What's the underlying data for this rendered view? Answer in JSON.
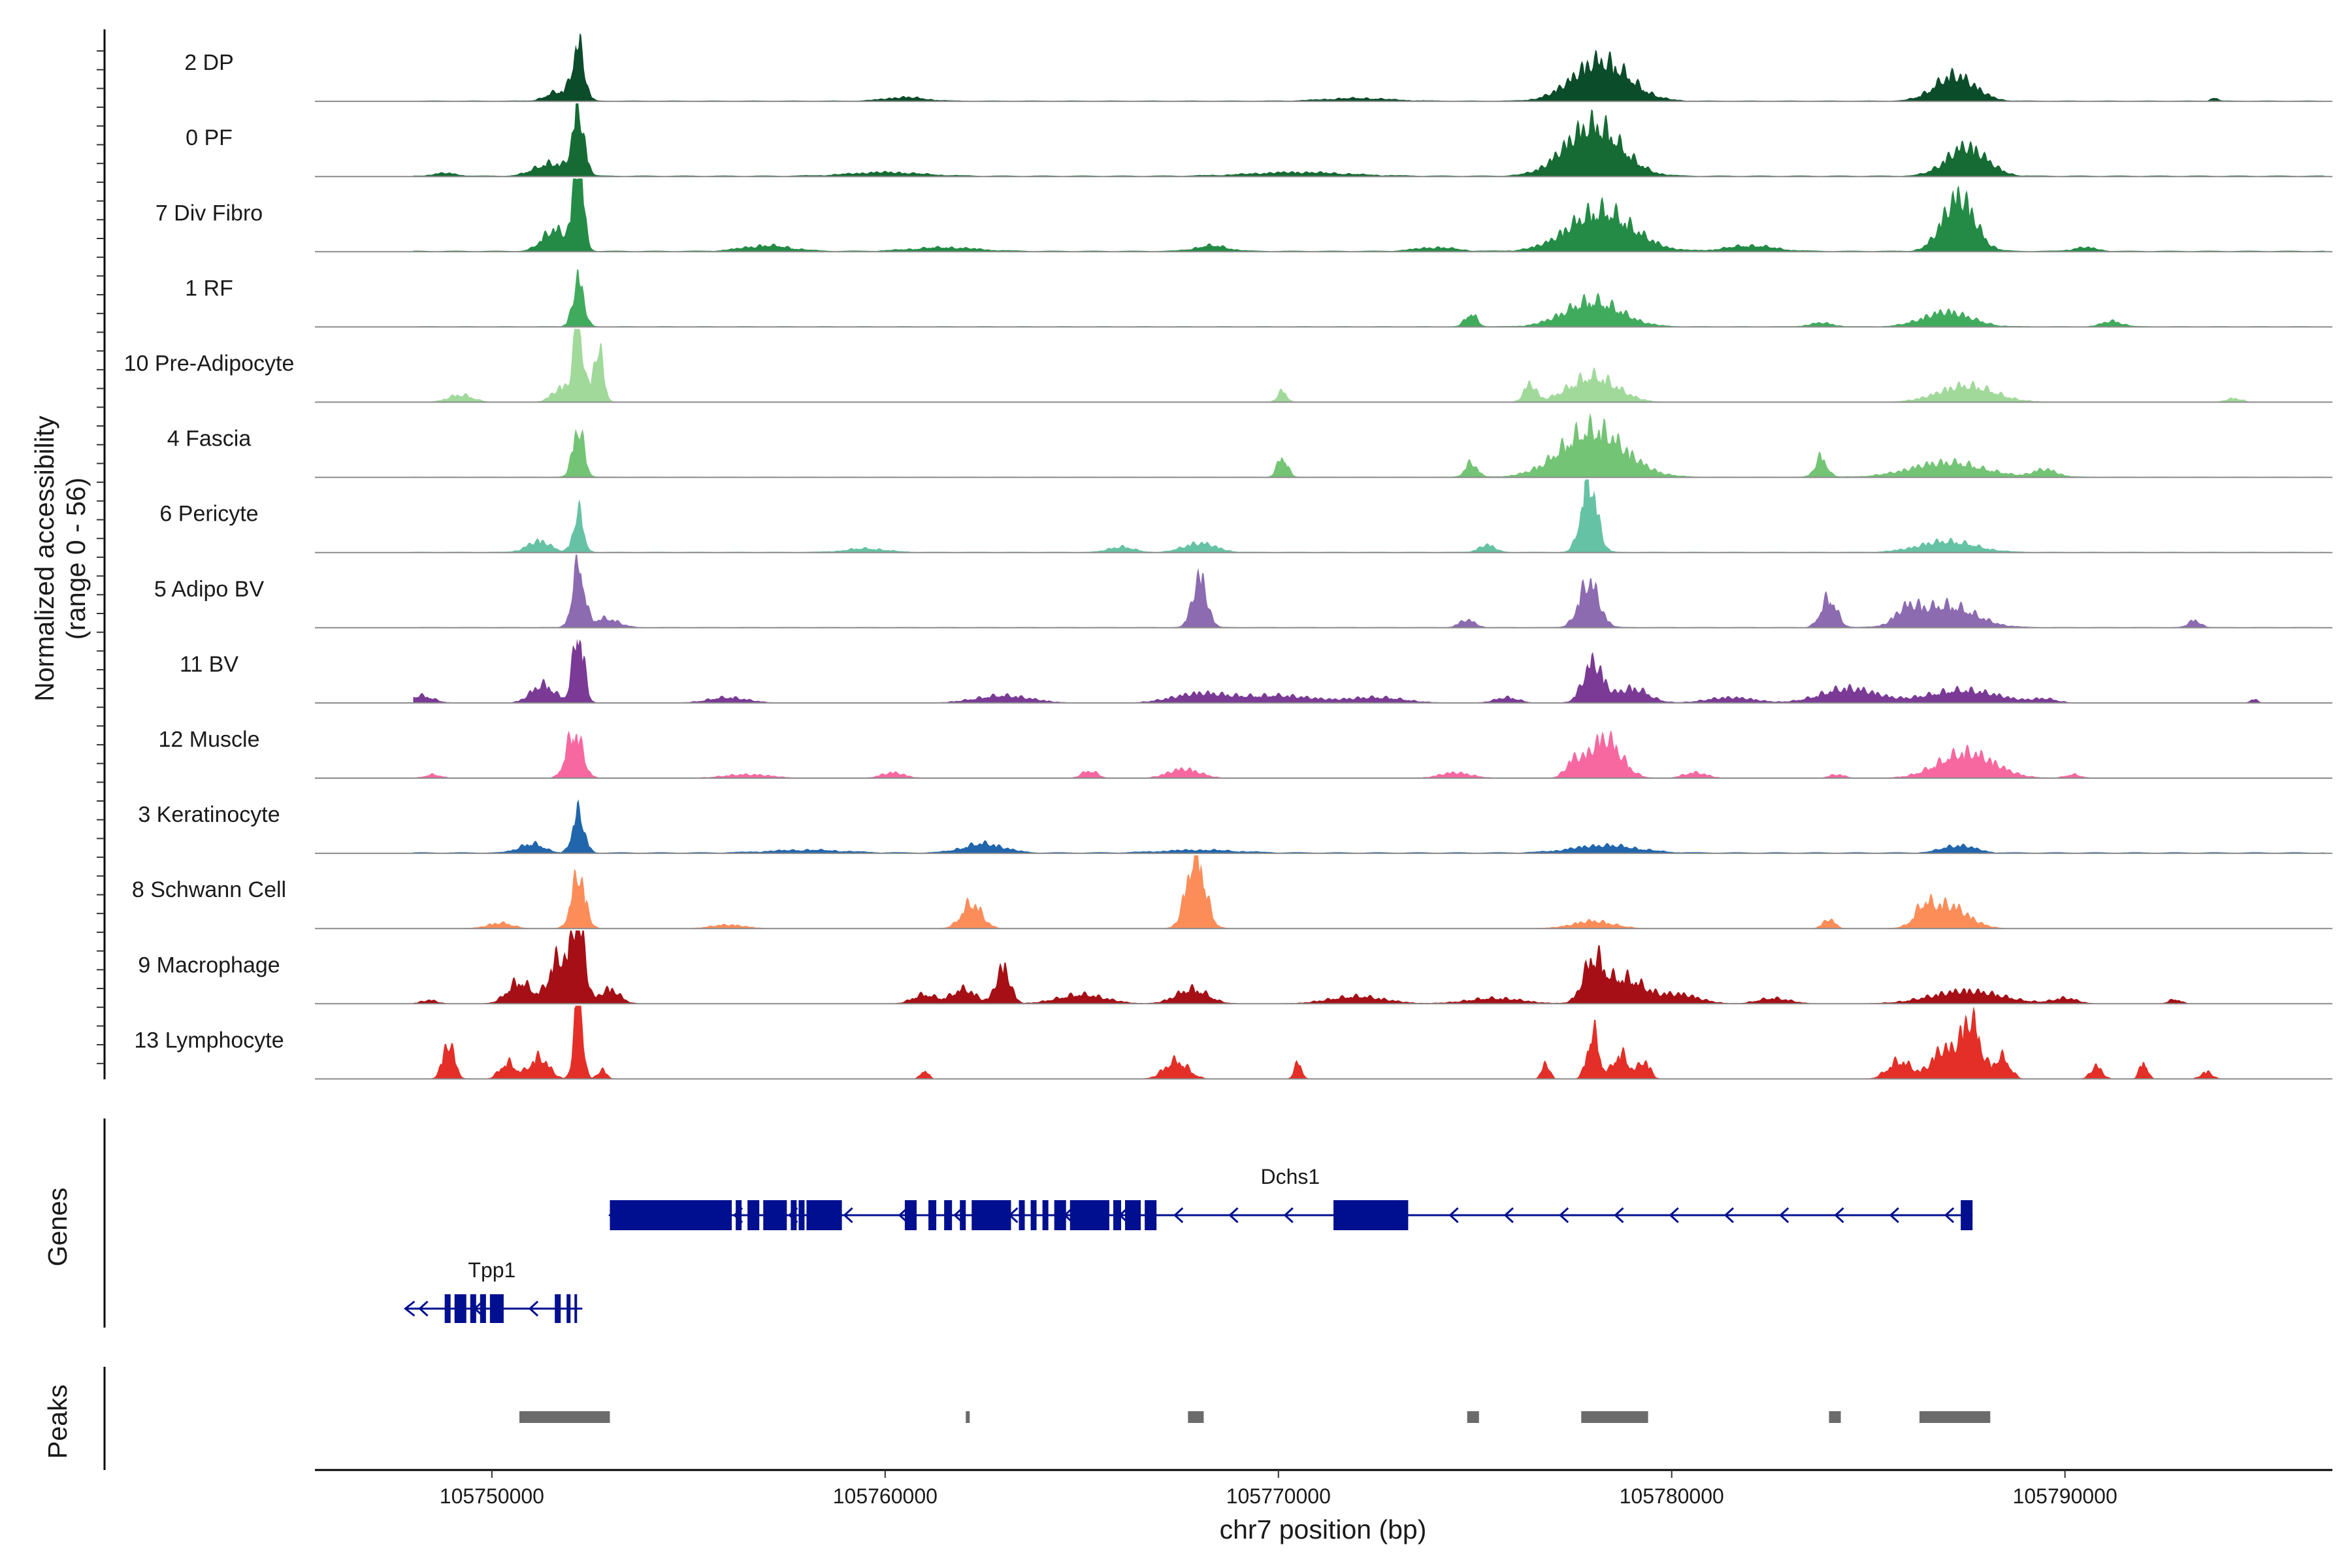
{
  "chart_data": {
    "type": "area",
    "title": "",
    "chromosome": "chr7",
    "xlabel": "chr7 position (bp)",
    "xlim": [
      105745500,
      105796800
    ],
    "x_ticks": [
      105750000,
      105760000,
      105770000,
      105780000,
      105790000
    ],
    "x_tick_labels": [
      "105750000",
      "105760000",
      "105770000",
      "105780000",
      "105790000"
    ],
    "coverage_ylabel": "Normalized accessibility",
    "coverage_ylabel_range": "(range 0 - 56)",
    "ylim": [
      0,
      56
    ],
    "genes_label": "Genes",
    "peaks_label": "Peaks",
    "tracks": [
      {
        "name": "2 DP",
        "color": "#0b4c2a",
        "baseline": 0.22,
        "peaks": [
          [
            105752200,
            30,
            150
          ],
          [
            105751700,
            5,
            300
          ],
          [
            105778200,
            22,
            700
          ],
          [
            105787200,
            14,
            500
          ],
          [
            105760500,
            2,
            500
          ],
          [
            105772000,
            1.5,
            800
          ],
          [
            105793800,
            2,
            80
          ]
        ]
      },
      {
        "name": "0 PF",
        "color": "#156b33",
        "baseline": 0.28,
        "peaks": [
          [
            105752200,
            35,
            150
          ],
          [
            105751500,
            7,
            400
          ],
          [
            105778000,
            28,
            700
          ],
          [
            105787500,
            16,
            500
          ],
          [
            105760000,
            2,
            900
          ],
          [
            105770500,
            2,
            1200
          ],
          [
            105748800,
            1.5,
            300
          ]
        ]
      },
      {
        "name": "7 Div Fibro",
        "color": "#238b45",
        "baseline": 0.3,
        "peaks": [
          [
            105752200,
            52,
            130
          ],
          [
            105751600,
            12,
            300
          ],
          [
            105778200,
            22,
            800
          ],
          [
            105787300,
            30,
            400
          ],
          [
            105757000,
            3,
            600
          ],
          [
            105761500,
            2,
            800
          ],
          [
            105768300,
            3,
            400
          ],
          [
            105774000,
            2,
            500
          ],
          [
            105782000,
            3,
            600
          ],
          [
            105790500,
            2,
            300
          ]
        ]
      },
      {
        "name": "1 RF",
        "color": "#41ab5d",
        "baseline": 0.2,
        "peaks": [
          [
            105752200,
            26,
            140
          ],
          [
            105778000,
            14,
            700
          ],
          [
            105787000,
            8,
            600
          ],
          [
            105774900,
            7,
            150
          ],
          [
            105791200,
            3,
            250
          ],
          [
            105783800,
            2,
            300
          ]
        ]
      },
      {
        "name": "10 Pre-Adipocyte",
        "color": "#a1d99b",
        "baseline": 0.1,
        "peaks": [
          [
            105752200,
            45,
            120
          ],
          [
            105752700,
            30,
            130
          ],
          [
            105751800,
            8,
            250
          ],
          [
            105778000,
            14,
            600
          ],
          [
            105776400,
            10,
            150
          ],
          [
            105787500,
            9,
            700
          ],
          [
            105770100,
            6,
            120
          ],
          [
            105749200,
            4,
            300
          ],
          [
            105794300,
            2,
            200
          ]
        ]
      },
      {
        "name": "4 Fascia",
        "color": "#74c476",
        "baseline": 0.2,
        "peaks": [
          [
            105752200,
            28,
            140
          ],
          [
            105778000,
            26,
            800
          ],
          [
            105787000,
            8,
            900
          ],
          [
            105770100,
            11,
            130
          ],
          [
            105774900,
            8,
            150
          ],
          [
            105783800,
            11,
            150
          ],
          [
            105789500,
            4,
            300
          ]
        ]
      },
      {
        "name": "6 Pericyte",
        "color": "#66c2a4",
        "baseline": 0.2,
        "peaks": [
          [
            105752200,
            22,
            130
          ],
          [
            105777900,
            40,
            200
          ],
          [
            105751200,
            6,
            300
          ],
          [
            105787000,
            6,
            700
          ],
          [
            105768000,
            5,
            400
          ],
          [
            105766000,
            3,
            300
          ],
          [
            105775300,
            4,
            200
          ],
          [
            105759500,
            2,
            500
          ]
        ]
      },
      {
        "name": "5 Adipo BV",
        "color": "#8c6bb1",
        "baseline": 0.2,
        "peaks": [
          [
            105752200,
            35,
            150
          ],
          [
            105777900,
            25,
            250
          ],
          [
            105768000,
            28,
            180
          ],
          [
            105784000,
            16,
            200
          ],
          [
            105787000,
            12,
            700
          ],
          [
            105786000,
            8,
            300
          ],
          [
            105752900,
            5,
            300
          ],
          [
            105774800,
            4,
            200
          ],
          [
            105793300,
            4,
            150
          ]
        ]
      },
      {
        "name": "11 BV",
        "color": "#7a3a96",
        "baseline": 0.06,
        "peaks": [
          [
            105752200,
            40,
            140
          ],
          [
            105751300,
            10,
            300
          ],
          [
            105778000,
            22,
            250
          ],
          [
            105779000,
            8,
            400
          ],
          [
            105784500,
            8,
            700
          ],
          [
            105787400,
            7,
            900
          ],
          [
            105748200,
            4,
            300
          ],
          [
            105756000,
            3,
            500
          ],
          [
            105763000,
            4,
            700
          ],
          [
            105768000,
            5,
            700
          ],
          [
            105770000,
            4,
            900
          ],
          [
            105772500,
            3,
            700
          ],
          [
            105775800,
            3,
            300
          ],
          [
            105781500,
            3,
            600
          ],
          [
            105789500,
            2,
            300
          ],
          [
            105794800,
            2,
            100
          ]
        ]
      },
      {
        "name": "12 Muscle",
        "color": "#f768a1",
        "baseline": 0.06,
        "peaks": [
          [
            105752100,
            26,
            200
          ],
          [
            105778300,
            22,
            400
          ],
          [
            105777500,
            8,
            200
          ],
          [
            105787500,
            14,
            700
          ],
          [
            105765200,
            4,
            200
          ],
          [
            105767600,
            5,
            400
          ],
          [
            105760200,
            3,
            300
          ],
          [
            105756500,
            2,
            600
          ],
          [
            105774500,
            3,
            400
          ],
          [
            105780600,
            3,
            300
          ],
          [
            105784200,
            2,
            200
          ],
          [
            105790200,
            2,
            200
          ],
          [
            105748500,
            2,
            200
          ]
        ]
      },
      {
        "name": "3 Keratinocyte",
        "color": "#2166ac",
        "baseline": 0.3,
        "peaks": [
          [
            105752200,
            22,
            150
          ],
          [
            105751000,
            5,
            300
          ],
          [
            105762500,
            5,
            500
          ],
          [
            105778300,
            4,
            800
          ],
          [
            105787300,
            4,
            400
          ],
          [
            105758000,
            1.5,
            900
          ],
          [
            105768000,
            1.5,
            900
          ]
        ]
      },
      {
        "name": "8 Schwann Cell",
        "color": "#fc8d59",
        "baseline": 0.12,
        "peaks": [
          [
            105752200,
            30,
            170
          ],
          [
            105767900,
            42,
            230
          ],
          [
            105762200,
            14,
            250
          ],
          [
            105787000,
            13,
            500
          ],
          [
            105786400,
            8,
            200
          ],
          [
            105784000,
            5,
            150
          ],
          [
            105778000,
            4,
            500
          ],
          [
            105750200,
            3,
            300
          ],
          [
            105756000,
            2,
            400
          ]
        ]
      },
      {
        "name": "9 Macrophage",
        "color": "#a50f15",
        "baseline": 0.08,
        "peaks": [
          [
            105752200,
            48,
            160
          ],
          [
            105751700,
            25,
            250
          ],
          [
            105750700,
            12,
            300
          ],
          [
            105753000,
            8,
            250
          ],
          [
            105763000,
            20,
            180
          ],
          [
            105762000,
            8,
            300
          ],
          [
            105761000,
            5,
            300
          ],
          [
            105778000,
            22,
            250
          ],
          [
            105778800,
            14,
            500
          ],
          [
            105780200,
            5,
            500
          ],
          [
            105787500,
            7,
            900
          ],
          [
            105767800,
            8,
            400
          ],
          [
            105765000,
            5,
            600
          ],
          [
            105772000,
            4,
            700
          ],
          [
            105775500,
            3,
            700
          ],
          [
            105782600,
            3,
            400
          ],
          [
            105790000,
            3,
            300
          ],
          [
            105792800,
            2.5,
            150
          ],
          [
            105748400,
            2,
            200
          ]
        ]
      },
      {
        "name": "13 Lymphocyte",
        "color": "#e32f27",
        "baseline": 0.0,
        "peaks": [
          [
            105752200,
            50,
            110
          ],
          [
            105748900,
            20,
            150
          ],
          [
            105751200,
            12,
            250
          ],
          [
            105750400,
            9,
            200
          ],
          [
            105752800,
            5,
            120
          ],
          [
            105778000,
            26,
            150
          ],
          [
            105778700,
            14,
            200
          ],
          [
            105779300,
            10,
            150
          ],
          [
            105776800,
            9,
            100
          ],
          [
            105787600,
            32,
            250
          ],
          [
            105786900,
            16,
            300
          ],
          [
            105785800,
            10,
            300
          ],
          [
            105788400,
            12,
            200
          ],
          [
            105767400,
            10,
            300
          ],
          [
            105770500,
            9,
            100
          ],
          [
            105761000,
            5,
            100
          ],
          [
            105790800,
            7,
            150
          ],
          [
            105792000,
            10,
            100
          ],
          [
            105793600,
            4,
            150
          ]
        ]
      }
    ],
    "genes": [
      {
        "name": "Dchs1",
        "strand": "-",
        "start": 105753000,
        "end": 105787650,
        "row": 0,
        "exons": [
          [
            105753000,
            105756100
          ],
          [
            105756200,
            105756350
          ],
          [
            105756500,
            105756800
          ],
          [
            105756900,
            105757500
          ],
          [
            105757600,
            105757750
          ],
          [
            105757800,
            105757950
          ],
          [
            105758000,
            105758900
          ],
          [
            105760500,
            105760800
          ],
          [
            105761100,
            105761300
          ],
          [
            105761500,
            105761700
          ],
          [
            105761900,
            105762050
          ],
          [
            105762200,
            105763200
          ],
          [
            105763400,
            105763550
          ],
          [
            105763700,
            105763850
          ],
          [
            105764000,
            105764150
          ],
          [
            105764300,
            105764600
          ],
          [
            105764700,
            105765700
          ],
          [
            105765800,
            105766000
          ],
          [
            105766100,
            105766500
          ],
          [
            105766600,
            105766900
          ],
          [
            105771400,
            105773300
          ],
          [
            105787350,
            105787650
          ]
        ]
      },
      {
        "name": "Tpp1",
        "strand": "-",
        "start": 105747800,
        "end": 105752300,
        "row": 1,
        "exons": [
          [
            105748800,
            105748950
          ],
          [
            105749050,
            105749350
          ],
          [
            105749450,
            105749600
          ],
          [
            105749700,
            105749850
          ],
          [
            105749950,
            105750300
          ],
          [
            105751600,
            105751750
          ],
          [
            105751900,
            105752000
          ],
          [
            105752100,
            105752150
          ]
        ]
      }
    ],
    "peaks": [
      [
        105750700,
        105753000
      ],
      [
        105762050,
        105762150
      ],
      [
        105767700,
        105768100
      ],
      [
        105774800,
        105775100
      ],
      [
        105777700,
        105779400
      ],
      [
        105784000,
        105784300
      ],
      [
        105786300,
        105788100
      ]
    ]
  }
}
